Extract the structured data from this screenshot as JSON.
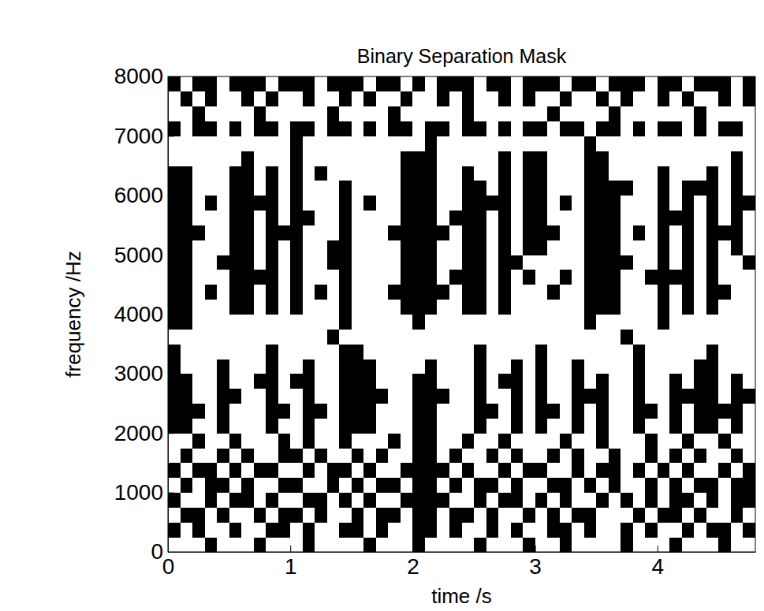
{
  "chart_data": {
    "type": "heatmap",
    "title": "Binary Separation Mask",
    "x_label": "time /s",
    "y_label": "frequency /Hz",
    "xlim": [
      0,
      4.8
    ],
    "ylim": [
      0,
      8000
    ],
    "xticks": [
      0,
      1,
      2,
      3,
      4
    ],
    "yticks": [
      0,
      1000,
      2000,
      3000,
      4000,
      5000,
      6000,
      7000,
      8000
    ],
    "x_bins": [
      0,
      0.1,
      0.2,
      0.3,
      0.4,
      0.5,
      0.6,
      0.7,
      0.8,
      0.9,
      1,
      1.1,
      1.2,
      1.3,
      1.4,
      1.5,
      1.6,
      1.7,
      1.8,
      1.9,
      2,
      2.1,
      2.2,
      2.3,
      2.4,
      2.5,
      2.6,
      2.7,
      2.8,
      2.9,
      3,
      3.1,
      3.2,
      3.3,
      3.4,
      3.5,
      3.6,
      3.7,
      3.8,
      3.9,
      4,
      4.1,
      4.2,
      4.3,
      4.4,
      4.5,
      4.6,
      4.7,
      4.8,
      4.9
    ],
    "y_bins": [
      0,
      250,
      500,
      750,
      1000,
      1250,
      1500,
      1750,
      2000,
      2250,
      2500,
      2750,
      3000,
      3250,
      3500,
      3750,
      4000,
      4250,
      4500,
      4750,
      5000,
      5250,
      5500,
      5750,
      6000,
      6250,
      6500,
      6750,
      7000,
      7250,
      7500,
      7750,
      8000
    ],
    "cells": [
      [
        0,
        0,
        0,
        1,
        0,
        0,
        0,
        1,
        0,
        0,
        0,
        1,
        0,
        0,
        0,
        0,
        1,
        0,
        0,
        0,
        1,
        0,
        0,
        0,
        0,
        1,
        0,
        0,
        0,
        1,
        0,
        0,
        1,
        0,
        0,
        0,
        0,
        1,
        0,
        0,
        0,
        1,
        0,
        0,
        0,
        1,
        0,
        0,
        0
      ],
      [
        1,
        0,
        1,
        0,
        0,
        1,
        0,
        0,
        1,
        1,
        0,
        1,
        0,
        0,
        1,
        1,
        0,
        1,
        0,
        0,
        1,
        1,
        0,
        1,
        0,
        0,
        1,
        0,
        1,
        0,
        0,
        1,
        1,
        0,
        1,
        0,
        0,
        1,
        0,
        1,
        0,
        0,
        1,
        0,
        1,
        1,
        0,
        1,
        0
      ],
      [
        0,
        1,
        1,
        0,
        1,
        0,
        0,
        1,
        0,
        1,
        1,
        0,
        1,
        0,
        0,
        1,
        0,
        1,
        1,
        0,
        1,
        1,
        0,
        1,
        1,
        0,
        1,
        0,
        0,
        1,
        0,
        1,
        0,
        1,
        1,
        0,
        0,
        0,
        1,
        0,
        1,
        1,
        0,
        1,
        0,
        0,
        1,
        0,
        1
      ],
      [
        1,
        0,
        0,
        1,
        0,
        1,
        1,
        0,
        1,
        0,
        0,
        1,
        1,
        0,
        1,
        0,
        1,
        0,
        0,
        1,
        1,
        1,
        1,
        0,
        0,
        1,
        0,
        1,
        1,
        0,
        1,
        0,
        1,
        0,
        0,
        1,
        0,
        1,
        0,
        1,
        0,
        1,
        1,
        0,
        1,
        0,
        1,
        1,
        0
      ],
      [
        0,
        1,
        0,
        1,
        1,
        0,
        1,
        0,
        0,
        1,
        1,
        0,
        0,
        1,
        0,
        1,
        0,
        1,
        1,
        0,
        1,
        1,
        0,
        1,
        0,
        1,
        1,
        0,
        1,
        0,
        0,
        1,
        1,
        0,
        1,
        0,
        1,
        0,
        0,
        1,
        0,
        1,
        0,
        1,
        1,
        0,
        1,
        1,
        1
      ],
      [
        1,
        0,
        1,
        1,
        0,
        1,
        0,
        1,
        1,
        0,
        0,
        1,
        0,
        1,
        1,
        0,
        1,
        0,
        0,
        1,
        1,
        1,
        1,
        0,
        1,
        0,
        0,
        1,
        0,
        1,
        1,
        0,
        0,
        1,
        0,
        1,
        1,
        0,
        1,
        0,
        1,
        0,
        1,
        0,
        0,
        1,
        0,
        1,
        1
      ],
      [
        0,
        1,
        0,
        0,
        1,
        0,
        1,
        0,
        0,
        1,
        1,
        0,
        1,
        0,
        0,
        1,
        0,
        1,
        0,
        0,
        1,
        1,
        0,
        1,
        0,
        0,
        1,
        0,
        1,
        0,
        0,
        1,
        0,
        1,
        0,
        0,
        1,
        0,
        0,
        1,
        0,
        1,
        0,
        1,
        0,
        0,
        1,
        0,
        1
      ],
      [
        0,
        0,
        1,
        0,
        0,
        1,
        0,
        0,
        0,
        1,
        0,
        1,
        0,
        0,
        1,
        0,
        0,
        0,
        1,
        0,
        1,
        1,
        0,
        0,
        1,
        0,
        0,
        1,
        0,
        0,
        0,
        0,
        1,
        0,
        0,
        1,
        0,
        0,
        0,
        1,
        0,
        0,
        1,
        0,
        0,
        1,
        0,
        0,
        0
      ],
      [
        1,
        1,
        0,
        0,
        1,
        0,
        0,
        0,
        1,
        0,
        0,
        1,
        0,
        0,
        1,
        1,
        1,
        0,
        0,
        0,
        1,
        1,
        0,
        0,
        0,
        1,
        0,
        0,
        1,
        0,
        1,
        0,
        0,
        1,
        0,
        1,
        0,
        0,
        1,
        0,
        0,
        1,
        0,
        1,
        1,
        0,
        1,
        0,
        0
      ],
      [
        1,
        1,
        1,
        0,
        1,
        0,
        0,
        0,
        1,
        1,
        0,
        1,
        1,
        0,
        1,
        1,
        1,
        0,
        0,
        0,
        1,
        1,
        0,
        0,
        0,
        1,
        1,
        0,
        1,
        0,
        1,
        1,
        0,
        1,
        0,
        1,
        0,
        0,
        1,
        1,
        0,
        1,
        0,
        1,
        1,
        1,
        1,
        0,
        0
      ],
      [
        1,
        1,
        0,
        0,
        1,
        1,
        0,
        0,
        1,
        0,
        0,
        1,
        0,
        0,
        1,
        1,
        1,
        1,
        0,
        0,
        1,
        1,
        1,
        0,
        0,
        1,
        0,
        0,
        1,
        0,
        1,
        0,
        0,
        1,
        1,
        1,
        0,
        0,
        1,
        0,
        0,
        1,
        1,
        1,
        1,
        0,
        1,
        1,
        0
      ],
      [
        1,
        1,
        0,
        0,
        1,
        0,
        0,
        1,
        1,
        0,
        1,
        1,
        0,
        0,
        1,
        1,
        1,
        0,
        0,
        0,
        1,
        1,
        0,
        0,
        0,
        1,
        0,
        1,
        1,
        0,
        1,
        0,
        0,
        1,
        0,
        1,
        0,
        0,
        1,
        0,
        0,
        1,
        0,
        1,
        1,
        0,
        1,
        0,
        0
      ],
      [
        1,
        0,
        0,
        0,
        1,
        0,
        0,
        0,
        1,
        0,
        0,
        1,
        0,
        0,
        1,
        1,
        1,
        0,
        0,
        0,
        0,
        1,
        0,
        0,
        0,
        1,
        0,
        0,
        1,
        0,
        1,
        0,
        0,
        1,
        0,
        0,
        0,
        0,
        1,
        0,
        0,
        0,
        0,
        1,
        1,
        0,
        0,
        0,
        0
      ],
      [
        1,
        0,
        0,
        0,
        0,
        0,
        0,
        0,
        1,
        0,
        0,
        0,
        0,
        0,
        1,
        1,
        0,
        0,
        0,
        0,
        0,
        0,
        0,
        0,
        0,
        1,
        0,
        0,
        0,
        0,
        1,
        0,
        0,
        0,
        0,
        0,
        0,
        0,
        1,
        0,
        0,
        0,
        0,
        0,
        1,
        0,
        0,
        0,
        0
      ],
      [
        0,
        0,
        0,
        0,
        0,
        0,
        0,
        0,
        0,
        0,
        0,
        0,
        0,
        1,
        0,
        0,
        0,
        0,
        0,
        0,
        0,
        0,
        0,
        0,
        0,
        0,
        0,
        0,
        0,
        0,
        0,
        0,
        0,
        0,
        0,
        0,
        0,
        1,
        0,
        0,
        0,
        0,
        0,
        0,
        0,
        0,
        0,
        0,
        0
      ],
      [
        1,
        1,
        0,
        0,
        0,
        0,
        0,
        0,
        0,
        0,
        0,
        0,
        0,
        0,
        1,
        0,
        0,
        0,
        0,
        0,
        1,
        0,
        0,
        0,
        0,
        0,
        0,
        0,
        0,
        0,
        0,
        0,
        0,
        0,
        1,
        0,
        0,
        0,
        0,
        0,
        1,
        0,
        0,
        0,
        0,
        0,
        0,
        0,
        0
      ],
      [
        1,
        1,
        0,
        0,
        0,
        1,
        1,
        0,
        1,
        0,
        1,
        0,
        0,
        0,
        1,
        0,
        0,
        0,
        0,
        1,
        1,
        1,
        0,
        0,
        1,
        1,
        0,
        1,
        0,
        0,
        0,
        0,
        0,
        0,
        1,
        1,
        1,
        0,
        0,
        0,
        1,
        0,
        1,
        0,
        1,
        0,
        0,
        0,
        1
      ],
      [
        1,
        1,
        0,
        1,
        0,
        1,
        1,
        0,
        1,
        0,
        1,
        0,
        1,
        0,
        1,
        0,
        0,
        0,
        1,
        1,
        1,
        1,
        1,
        0,
        1,
        1,
        0,
        1,
        0,
        0,
        0,
        1,
        0,
        0,
        1,
        1,
        1,
        0,
        0,
        0,
        1,
        0,
        1,
        0,
        1,
        1,
        0,
        0,
        1
      ],
      [
        1,
        1,
        0,
        0,
        0,
        1,
        1,
        1,
        1,
        0,
        1,
        0,
        0,
        0,
        1,
        0,
        0,
        0,
        0,
        1,
        1,
        1,
        0,
        1,
        1,
        1,
        0,
        1,
        0,
        1,
        0,
        0,
        1,
        0,
        1,
        1,
        1,
        0,
        0,
        1,
        1,
        1,
        1,
        0,
        1,
        0,
        0,
        0,
        1
      ],
      [
        1,
        1,
        0,
        0,
        1,
        1,
        1,
        0,
        1,
        0,
        1,
        0,
        0,
        1,
        1,
        0,
        0,
        0,
        0,
        1,
        1,
        1,
        0,
        0,
        1,
        1,
        0,
        1,
        1,
        0,
        0,
        0,
        0,
        0,
        1,
        1,
        1,
        1,
        0,
        0,
        1,
        0,
        1,
        0,
        1,
        0,
        0,
        1,
        1
      ],
      [
        1,
        1,
        0,
        0,
        0,
        1,
        1,
        0,
        1,
        0,
        1,
        0,
        0,
        1,
        1,
        0,
        0,
        0,
        0,
        1,
        1,
        1,
        0,
        0,
        1,
        1,
        0,
        1,
        0,
        1,
        1,
        0,
        0,
        0,
        1,
        1,
        1,
        0,
        0,
        0,
        1,
        0,
        1,
        0,
        1,
        0,
        1,
        0,
        1
      ],
      [
        1,
        1,
        1,
        0,
        0,
        1,
        1,
        0,
        1,
        1,
        1,
        0,
        0,
        0,
        1,
        0,
        0,
        0,
        1,
        1,
        1,
        1,
        1,
        0,
        1,
        1,
        0,
        1,
        0,
        1,
        1,
        1,
        0,
        0,
        1,
        1,
        1,
        0,
        1,
        0,
        1,
        0,
        1,
        0,
        1,
        1,
        1,
        0,
        1
      ],
      [
        1,
        1,
        0,
        0,
        0,
        1,
        1,
        0,
        1,
        0,
        1,
        1,
        0,
        0,
        1,
        0,
        0,
        0,
        0,
        1,
        1,
        1,
        0,
        1,
        1,
        1,
        0,
        1,
        0,
        1,
        1,
        0,
        0,
        0,
        1,
        1,
        1,
        0,
        0,
        0,
        1,
        1,
        1,
        0,
        1,
        0,
        1,
        0,
        1
      ],
      [
        1,
        1,
        0,
        1,
        0,
        1,
        1,
        1,
        1,
        0,
        1,
        0,
        0,
        0,
        1,
        0,
        1,
        0,
        0,
        1,
        1,
        1,
        0,
        0,
        1,
        1,
        1,
        1,
        0,
        1,
        1,
        0,
        1,
        0,
        1,
        1,
        1,
        0,
        0,
        0,
        1,
        0,
        1,
        0,
        1,
        0,
        1,
        1,
        1
      ],
      [
        1,
        1,
        0,
        0,
        0,
        1,
        1,
        0,
        1,
        0,
        1,
        0,
        0,
        0,
        1,
        0,
        0,
        0,
        0,
        1,
        1,
        1,
        0,
        0,
        1,
        1,
        0,
        1,
        0,
        1,
        1,
        0,
        0,
        0,
        1,
        1,
        1,
        1,
        0,
        0,
        1,
        0,
        1,
        1,
        1,
        0,
        1,
        0,
        1
      ],
      [
        1,
        1,
        0,
        0,
        0,
        1,
        1,
        0,
        1,
        0,
        1,
        0,
        1,
        0,
        0,
        0,
        0,
        0,
        0,
        1,
        1,
        1,
        0,
        0,
        1,
        0,
        0,
        1,
        0,
        1,
        1,
        0,
        0,
        0,
        1,
        1,
        0,
        0,
        0,
        0,
        1,
        0,
        0,
        0,
        1,
        0,
        1,
        0,
        1
      ],
      [
        0,
        0,
        0,
        0,
        0,
        0,
        1,
        0,
        0,
        0,
        1,
        0,
        0,
        0,
        0,
        0,
        0,
        0,
        0,
        1,
        1,
        1,
        0,
        0,
        0,
        0,
        0,
        1,
        0,
        1,
        1,
        0,
        0,
        0,
        1,
        1,
        0,
        0,
        0,
        0,
        0,
        0,
        0,
        0,
        0,
        0,
        1,
        0,
        0
      ],
      [
        0,
        0,
        0,
        0,
        0,
        0,
        0,
        0,
        0,
        0,
        1,
        0,
        0,
        0,
        0,
        0,
        0,
        0,
        0,
        0,
        0,
        1,
        0,
        0,
        0,
        0,
        0,
        0,
        0,
        0,
        0,
        0,
        0,
        0,
        1,
        0,
        0,
        0,
        0,
        0,
        0,
        0,
        0,
        0,
        0,
        0,
        0,
        0,
        0
      ],
      [
        1,
        0,
        1,
        1,
        0,
        1,
        0,
        1,
        1,
        0,
        1,
        1,
        0,
        1,
        1,
        0,
        1,
        0,
        1,
        1,
        0,
        1,
        1,
        0,
        1,
        1,
        0,
        1,
        0,
        1,
        1,
        0,
        1,
        1,
        0,
        1,
        1,
        0,
        1,
        0,
        1,
        1,
        0,
        1,
        0,
        1,
        1,
        0,
        1
      ],
      [
        0,
        0,
        1,
        0,
        0,
        0,
        0,
        1,
        0,
        0,
        0,
        0,
        0,
        1,
        0,
        0,
        0,
        0,
        1,
        0,
        0,
        0,
        0,
        0,
        1,
        0,
        0,
        0,
        0,
        0,
        0,
        1,
        0,
        0,
        0,
        0,
        1,
        0,
        0,
        0,
        0,
        0,
        0,
        1,
        0,
        0,
        0,
        0,
        1
      ],
      [
        0,
        1,
        0,
        1,
        0,
        0,
        1,
        0,
        1,
        0,
        0,
        1,
        0,
        0,
        1,
        0,
        1,
        0,
        0,
        1,
        0,
        0,
        1,
        0,
        1,
        0,
        0,
        1,
        0,
        1,
        0,
        0,
        1,
        0,
        0,
        1,
        0,
        1,
        0,
        0,
        1,
        0,
        1,
        0,
        0,
        1,
        0,
        1,
        0
      ],
      [
        1,
        0,
        1,
        1,
        0,
        1,
        1,
        1,
        0,
        1,
        1,
        1,
        0,
        1,
        1,
        1,
        0,
        1,
        1,
        0,
        1,
        0,
        1,
        1,
        1,
        0,
        1,
        1,
        0,
        1,
        1,
        1,
        0,
        1,
        1,
        0,
        1,
        1,
        1,
        0,
        1,
        1,
        0,
        1,
        1,
        1,
        0,
        1,
        1
      ]
    ]
  }
}
